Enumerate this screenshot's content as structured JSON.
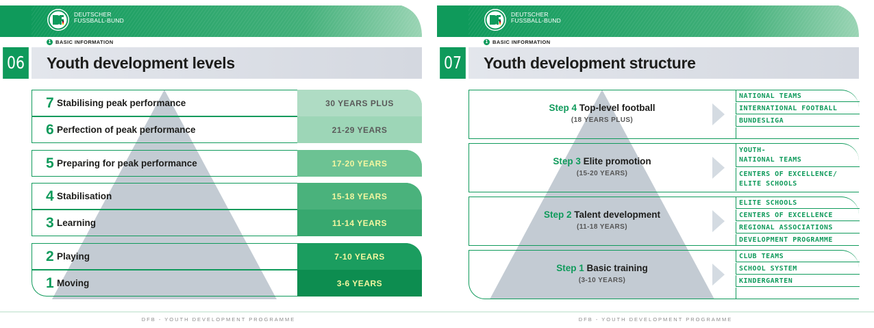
{
  "colors": {
    "brand_green": "#0f9a5b",
    "title_bar": "#dfe3ea",
    "pyramid": "#c3cbd3"
  },
  "brand": {
    "line1": "DEUTSCHER",
    "line2": "FUSSBALL-BUND"
  },
  "footer_text": "DFB - YOUTH DEVELOPMENT PROGRAMME",
  "left_page": {
    "section_number": "1",
    "section_label": "BASIC INFORMATION",
    "page_number": "06",
    "title": "Youth development levels",
    "levels": [
      {
        "num": "7",
        "label": "Stabilising peak performance",
        "age": "30 YEARS PLUS",
        "age_bg": "#afdcc4",
        "age_color": "#5a5a5a"
      },
      {
        "num": "6",
        "label": "Perfection of peak performance",
        "age": "21-29 YEARS",
        "age_bg": "#9dd6b7",
        "age_color": "#5a5a5a"
      },
      {
        "num": "5",
        "label": "Preparing for peak performance",
        "age": "17-20 YEARS",
        "age_bg": "#6cc293",
        "age_color": "#f3f6a0"
      },
      {
        "num": "4",
        "label": "Stabilisation",
        "age": "15-18 YEARS",
        "age_bg": "#4ab27c",
        "age_color": "#f3f6a0"
      },
      {
        "num": "3",
        "label": "Learning",
        "age": "11-14 YEARS",
        "age_bg": "#37a86f",
        "age_color": "#f3f6a0"
      },
      {
        "num": "2",
        "label": "Playing",
        "age": "7-10 YEARS",
        "age_bg": "#1b9d5f",
        "age_color": "#f3f6a0"
      },
      {
        "num": "1",
        "label": "Moving",
        "age": "3-6 YEARS",
        "age_bg": "#0d8d50",
        "age_color": "#f3f6a0"
      }
    ]
  },
  "right_page": {
    "section_number": "1",
    "section_label": "BASIC INFORMATION",
    "page_number": "07",
    "title": "Youth development structure",
    "steps": [
      {
        "step": "Step 4",
        "name": "Top-level football",
        "age": "(18 YEARS PLUS)",
        "items": [
          "NATIONAL TEAMS",
          "INTERNATIONAL FOOTBALL",
          "BUNDESLIGA",
          ""
        ]
      },
      {
        "step": "Step 3",
        "name": "Elite promotion",
        "age": "(15-20 YEARS)",
        "items": [
          "YOUTH-\nNATIONAL TEAMS",
          "CENTERS OF EXCELLENCE/\nELITE SCHOOLS"
        ]
      },
      {
        "step": "Step 2",
        "name": "Talent development",
        "age": "(11-18 YEARS)",
        "items": [
          "ELITE SCHOOLS",
          "CENTERS OF EXCELLENCE",
          "REGIONAL ASSOCIATIONS",
          "DEVELOPMENT PROGRAMME"
        ]
      },
      {
        "step": "Step 1",
        "name": "Basic training",
        "age": "(3-10 YEARS)",
        "items": [
          "CLUB TEAMS",
          "SCHOOL SYSTEM",
          "KINDERGARTEN",
          ""
        ]
      }
    ]
  }
}
